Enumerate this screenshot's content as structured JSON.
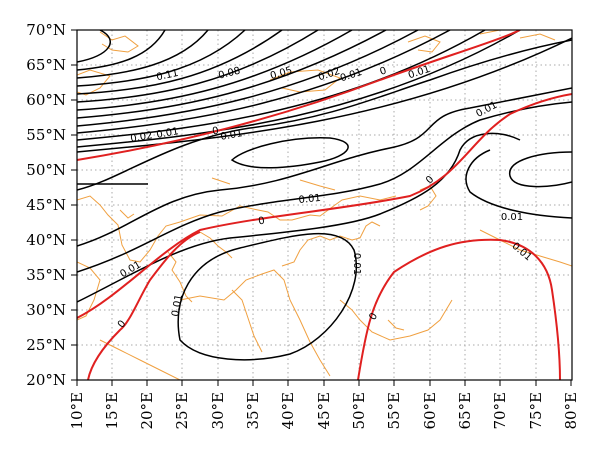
{
  "map": {
    "lon_labels": [
      "10°E",
      "15°E",
      "20°E",
      "25°E",
      "30°E",
      "35°E",
      "40°E",
      "45°E",
      "50°E",
      "55°E",
      "60°E",
      "65°E",
      "70°E",
      "75°E",
      "80°E"
    ],
    "lat_labels": [
      "70°N",
      "65°N",
      "60°N",
      "55°N",
      "50°N",
      "45°N",
      "40°N",
      "35°N",
      "30°N",
      "25°N",
      "20°N"
    ],
    "lon_range": [
      10,
      80
    ],
    "lat_range": [
      20,
      70
    ],
    "grid": "dotted",
    "colors": {
      "zero_contour": "#e02020",
      "contour": "#000000",
      "coastline": "#f0a040",
      "grid": "#aaaaaa"
    },
    "contour_labels": [
      "0.11",
      "0.08",
      "0.05",
      "0.02",
      "0.01",
      "0",
      "0.01",
      "0.02",
      "0.01",
      "0",
      "0.01",
      "0.01",
      "0",
      "0.01",
      "0",
      "0.01",
      "0.01",
      "0.01",
      "0",
      "0",
      "0.01",
      "0.01"
    ]
  }
}
